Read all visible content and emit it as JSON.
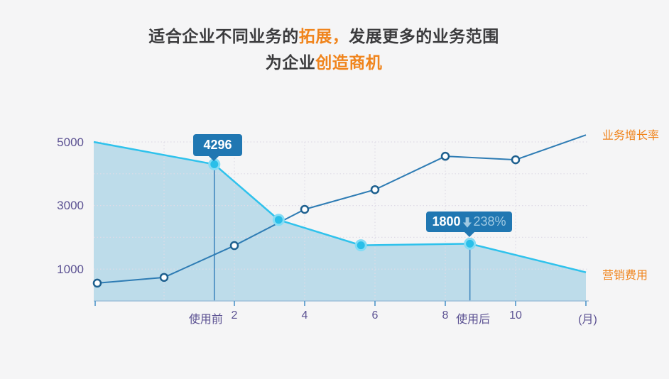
{
  "title": {
    "line1": [
      {
        "text": "适合企业不同业务的",
        "em": false
      },
      {
        "text": "拓展，",
        "em": true
      },
      {
        "text": "发展更多的业务范围",
        "em": false
      }
    ],
    "line2": [
      {
        "text": "为企业",
        "em": false
      },
      {
        "text": "创造商机",
        "em": true
      }
    ]
  },
  "colors": {
    "background": "#f5f5f6",
    "title_text": "#3b3b3d",
    "accent_orange": "#f0841c",
    "axis_label_purple": "#5b5192",
    "marketing_line": "#2fc2ec",
    "marketing_area_fill": "#b7d9e9",
    "growth_line": "#2e7cb4",
    "tooltip_background": "#2077b2",
    "tooltip_secondary_text": "#9fc9e2",
    "gridline": "#dfdbe7",
    "axis_line": "#9ec0da"
  },
  "chart_data": {
    "type": "line",
    "x_unit_label": "(月)",
    "ylim": [
      0,
      5600
    ],
    "xlim_months": [
      -2,
      12
    ],
    "grid": "dotted",
    "y_gridline_values": [
      1000,
      2000,
      3000,
      4000,
      5000
    ],
    "x_gridline_months": [
      0,
      2,
      4,
      6,
      8,
      10
    ],
    "x_tick_months": [
      2,
      4,
      6,
      8,
      10
    ],
    "y_tick_labels": [
      {
        "text": "5000",
        "value": 5000
      },
      {
        "text": "3000",
        "value": 3000
      },
      {
        "text": "1000",
        "value": 1000
      }
    ],
    "x_axis_labels": [
      {
        "text": "使用前",
        "month": 1.19
      },
      {
        "text": "2",
        "month": 2
      },
      {
        "text": "4",
        "month": 4
      },
      {
        "text": "6",
        "month": 6
      },
      {
        "text": "8",
        "month": 8
      },
      {
        "text": "使用后",
        "month": 8.79
      },
      {
        "text": "10",
        "month": 10
      },
      {
        "text": "(月)",
        "month": 12.05
      }
    ],
    "series": [
      {
        "name": "营销费用",
        "role": "marketing-cost",
        "kind": "area",
        "x_months": [
          -2,
          1.43,
          3.26,
          5.6,
          8.7,
          12
        ],
        "values": [
          5000,
          4296,
          2550,
          1750,
          1800,
          900
        ],
        "marker_indices": [
          1,
          2,
          3,
          4
        ],
        "label_position": "right-of-line-end"
      },
      {
        "name": "业务增长率",
        "role": "business-growth-rate",
        "kind": "line",
        "x_months": [
          -1.9,
          0,
          2,
          4,
          6,
          8,
          10,
          12
        ],
        "values": [
          560,
          740,
          1740,
          2880,
          3500,
          4550,
          4440,
          5220
        ],
        "marker_indices": [
          0,
          1,
          2,
          3,
          4,
          5,
          6
        ],
        "label_position": "right-of-line-end"
      }
    ],
    "annotations": [
      {
        "text": "4296",
        "month": 1.43,
        "value": 4296,
        "series": "营销费用"
      },
      {
        "text": "1800",
        "change": "238%",
        "direction": "down",
        "month": 8.7,
        "value": 1800,
        "series": "营销费用"
      }
    ]
  }
}
